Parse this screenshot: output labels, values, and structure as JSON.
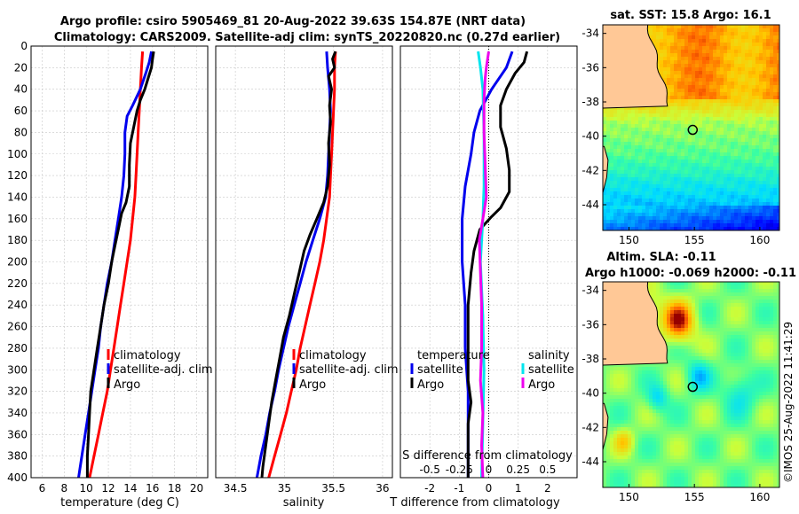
{
  "title": {
    "line1": "Argo profile: csiro 5905469_81 20-Aug-2022 39.63S 154.87E (NRT data)",
    "line2": "Climatology: CARS2009. Satellite-adj clim: synTS_20220820.nc (0.27d earlier)"
  },
  "colors": {
    "climatology": "#ff0000",
    "satellite": "#0000ee",
    "argo": "#000000",
    "sat_salinity": "#00e5ee",
    "argo_salinity": "#ee00ee",
    "land": "#ffc896",
    "grid": "#c8c8c8"
  },
  "legend": {
    "climatology": "climatology",
    "satellite_adj": "satellite-adj. clim",
    "argo": "Argo",
    "temperature": "temperature",
    "salinity": "salinity",
    "satellite": "satellite"
  },
  "depth_axis": {
    "ylim": [
      0,
      400
    ],
    "ticks": [
      0,
      20,
      40,
      60,
      80,
      100,
      120,
      140,
      160,
      180,
      200,
      220,
      240,
      260,
      280,
      300,
      320,
      340,
      360,
      380,
      400
    ]
  },
  "chart_data": [
    {
      "type": "line",
      "id": "temperature",
      "xlabel": "temperature (deg C)",
      "xlim": [
        5,
        21
      ],
      "xticks": [
        6,
        8,
        10,
        12,
        14,
        16,
        18,
        20
      ],
      "series": [
        {
          "name": "climatology",
          "points": [
            [
              15.1,
              5
            ],
            [
              15.0,
              20
            ],
            [
              14.9,
              40
            ],
            [
              14.8,
              60
            ],
            [
              14.7,
              80
            ],
            [
              14.6,
              100
            ],
            [
              14.5,
              120
            ],
            [
              14.4,
              140
            ],
            [
              14.2,
              160
            ],
            [
              14.0,
              180
            ],
            [
              13.7,
              200
            ],
            [
              13.4,
              220
            ],
            [
              13.1,
              240
            ],
            [
              12.8,
              260
            ],
            [
              12.5,
              280
            ],
            [
              12.2,
              300
            ],
            [
              11.9,
              320
            ],
            [
              11.5,
              340
            ],
            [
              11.1,
              360
            ],
            [
              10.7,
              380
            ],
            [
              10.3,
              400
            ]
          ]
        },
        {
          "name": "satellite-adj. clim",
          "points": [
            [
              15.9,
              5
            ],
            [
              15.7,
              15
            ],
            [
              15.4,
              25
            ],
            [
              14.9,
              40
            ],
            [
              14.2,
              55
            ],
            [
              13.7,
              65
            ],
            [
              13.5,
              80
            ],
            [
              13.5,
              100
            ],
            [
              13.4,
              120
            ],
            [
              13.2,
              140
            ],
            [
              12.9,
              160
            ],
            [
              12.6,
              180
            ],
            [
              12.3,
              200
            ],
            [
              11.9,
              220
            ],
            [
              11.6,
              240
            ],
            [
              11.3,
              260
            ],
            [
              11.1,
              280
            ],
            [
              10.8,
              300
            ],
            [
              10.5,
              320
            ],
            [
              10.2,
              340
            ],
            [
              9.9,
              360
            ],
            [
              9.6,
              380
            ],
            [
              9.3,
              400
            ]
          ]
        },
        {
          "name": "Argo",
          "points": [
            [
              16.1,
              5
            ],
            [
              16.0,
              12
            ],
            [
              15.9,
              20
            ],
            [
              15.6,
              30
            ],
            [
              15.3,
              40
            ],
            [
              14.9,
              50
            ],
            [
              14.6,
              60
            ],
            [
              14.4,
              70
            ],
            [
              14.2,
              80
            ],
            [
              14.0,
              90
            ],
            [
              13.9,
              110
            ],
            [
              13.9,
              130
            ],
            [
              13.6,
              145
            ],
            [
              13.2,
              155
            ],
            [
              12.9,
              170
            ],
            [
              12.6,
              185
            ],
            [
              12.3,
              200
            ],
            [
              12.0,
              220
            ],
            [
              11.6,
              240
            ],
            [
              11.3,
              260
            ],
            [
              11.0,
              280
            ],
            [
              10.7,
              300
            ],
            [
              10.4,
              320
            ],
            [
              10.3,
              340
            ],
            [
              10.2,
              360
            ],
            [
              10.1,
              380
            ],
            [
              10.1,
              400
            ]
          ]
        }
      ]
    },
    {
      "type": "line",
      "id": "salinity",
      "xlabel": "salinity",
      "xlim": [
        34.3,
        36.1
      ],
      "xticks": [
        34.5,
        35,
        35.5,
        36
      ],
      "xticklabels": [
        "34.5",
        "35",
        "35.5",
        "36"
      ],
      "series": [
        {
          "name": "climatology",
          "points": [
            [
              35.52,
              5
            ],
            [
              35.51,
              20
            ],
            [
              35.51,
              40
            ],
            [
              35.5,
              60
            ],
            [
              35.49,
              80
            ],
            [
              35.48,
              100
            ],
            [
              35.47,
              120
            ],
            [
              35.46,
              140
            ],
            [
              35.43,
              160
            ],
            [
              35.4,
              180
            ],
            [
              35.36,
              200
            ],
            [
              35.31,
              220
            ],
            [
              35.26,
              240
            ],
            [
              35.21,
              260
            ],
            [
              35.16,
              280
            ],
            [
              35.12,
              300
            ],
            [
              35.07,
              320
            ],
            [
              35.02,
              340
            ],
            [
              34.96,
              360
            ],
            [
              34.9,
              380
            ],
            [
              34.84,
              400
            ]
          ]
        },
        {
          "name": "satellite-adj. clim",
          "points": [
            [
              35.43,
              5
            ],
            [
              35.44,
              20
            ],
            [
              35.46,
              40
            ],
            [
              35.47,
              60
            ],
            [
              35.46,
              80
            ],
            [
              35.45,
              100
            ],
            [
              35.44,
              120
            ],
            [
              35.42,
              140
            ],
            [
              35.36,
              160
            ],
            [
              35.29,
              180
            ],
            [
              35.22,
              200
            ],
            [
              35.16,
              220
            ],
            [
              35.1,
              240
            ],
            [
              35.04,
              260
            ],
            [
              34.99,
              280
            ],
            [
              34.94,
              300
            ],
            [
              34.9,
              320
            ],
            [
              34.85,
              340
            ],
            [
              34.81,
              360
            ],
            [
              34.76,
              380
            ],
            [
              34.72,
              400
            ]
          ]
        },
        {
          "name": "Argo",
          "points": [
            [
              35.52,
              5
            ],
            [
              35.49,
              12
            ],
            [
              35.51,
              20
            ],
            [
              35.45,
              28
            ],
            [
              35.48,
              40
            ],
            [
              35.46,
              55
            ],
            [
              35.47,
              70
            ],
            [
              35.45,
              90
            ],
            [
              35.46,
              110
            ],
            [
              35.44,
              130
            ],
            [
              35.4,
              145
            ],
            [
              35.33,
              160
            ],
            [
              35.26,
              175
            ],
            [
              35.2,
              190
            ],
            [
              35.15,
              210
            ],
            [
              35.1,
              230
            ],
            [
              35.05,
              250
            ],
            [
              34.99,
              270
            ],
            [
              34.95,
              290
            ],
            [
              34.91,
              310
            ],
            [
              34.87,
              330
            ],
            [
              34.84,
              350
            ],
            [
              34.81,
              370
            ],
            [
              34.78,
              390
            ],
            [
              34.77,
              400
            ]
          ]
        }
      ]
    },
    {
      "type": "line",
      "id": "difference",
      "xlabel": "T difference from climatology",
      "xlim": [
        -3,
        3
      ],
      "xticks": [
        -2,
        -1,
        0,
        1,
        2
      ],
      "xticklabels": [
        "-2",
        "-1",
        "0",
        "1",
        "2"
      ],
      "s_xlabel": "S difference from climatology",
      "s_xticks": [
        -0.5,
        -0.25,
        0,
        0.25,
        0.5
      ],
      "s_xticklabels": [
        "-0.5",
        "-0.25",
        "0",
        "0.25",
        "0.5"
      ],
      "s_scale": 4,
      "series": [
        {
          "name": "temperature satellite",
          "points": [
            [
              0.8,
              5
            ],
            [
              0.6,
              20
            ],
            [
              0.1,
              40
            ],
            [
              -0.3,
              60
            ],
            [
              -0.5,
              80
            ],
            [
              -0.6,
              100
            ],
            [
              -0.8,
              130
            ],
            [
              -0.9,
              160
            ],
            [
              -0.9,
              200
            ],
            [
              -0.8,
              240
            ],
            [
              -0.8,
              280
            ],
            [
              -0.7,
              320
            ],
            [
              -0.7,
              360
            ],
            [
              -0.7,
              400
            ]
          ]
        },
        {
          "name": "temperature Argo",
          "points": [
            [
              1.3,
              5
            ],
            [
              1.2,
              15
            ],
            [
              0.9,
              25
            ],
            [
              0.6,
              40
            ],
            [
              0.4,
              55
            ],
            [
              0.4,
              75
            ],
            [
              0.6,
              95
            ],
            [
              0.7,
              115
            ],
            [
              0.7,
              135
            ],
            [
              0.4,
              150
            ],
            [
              0.1,
              158
            ],
            [
              -0.3,
              170
            ],
            [
              -0.5,
              190
            ],
            [
              -0.6,
              210
            ],
            [
              -0.7,
              240
            ],
            [
              -0.7,
              280
            ],
            [
              -0.7,
              310
            ],
            [
              -0.6,
              330
            ],
            [
              -0.7,
              350
            ],
            [
              -0.7,
              380
            ],
            [
              -0.7,
              400
            ]
          ]
        },
        {
          "name": "salinity satellite",
          "points": [
            [
              -0.09,
              5
            ],
            [
              -0.07,
              20
            ],
            [
              -0.05,
              40
            ],
            [
              -0.04,
              80
            ],
            [
              -0.04,
              130
            ],
            [
              -0.05,
              160
            ],
            [
              -0.07,
              200
            ],
            [
              -0.05,
              250
            ],
            [
              -0.04,
              300
            ],
            [
              -0.05,
              350
            ],
            [
              -0.06,
              400
            ]
          ]
        },
        {
          "name": "salinity Argo",
          "points": [
            [
              0.0,
              5
            ],
            [
              -0.02,
              20
            ],
            [
              -0.03,
              30
            ],
            [
              -0.04,
              50
            ],
            [
              -0.04,
              80
            ],
            [
              -0.03,
              110
            ],
            [
              -0.02,
              140
            ],
            [
              -0.05,
              160
            ],
            [
              -0.08,
              180
            ],
            [
              -0.07,
              210
            ],
            [
              -0.06,
              240
            ],
            [
              -0.06,
              280
            ],
            [
              -0.07,
              310
            ],
            [
              -0.05,
              340
            ],
            [
              -0.06,
              370
            ],
            [
              -0.05,
              400
            ]
          ]
        }
      ]
    },
    {
      "type": "heatmap",
      "id": "sst-map",
      "title": "sat. SST: 15.8 Argo: 16.1",
      "xlim": [
        148,
        161.5
      ],
      "ylim": [
        -45.5,
        -33.5
      ],
      "xticks": [
        150,
        155,
        160
      ],
      "yticks": [
        -34,
        -36,
        -38,
        -40,
        -42,
        -44
      ],
      "argo_lon": 154.87,
      "argo_lat": -39.63
    },
    {
      "type": "heatmap",
      "id": "sla-map",
      "title_line1": "Altim. SLA: -0.11",
      "title_line2": "Argo h1000: -0.069 h2000: -0.11",
      "xlim": [
        148,
        161.5
      ],
      "ylim": [
        -45.5,
        -33.5
      ],
      "xticks": [
        150,
        155,
        160
      ],
      "yticks": [
        -34,
        -36,
        -38,
        -40,
        -42,
        -44
      ],
      "argo_lon": 154.87,
      "argo_lat": -39.63
    }
  ],
  "credit": "©IMOS 25-Aug-2022 11:41:29"
}
